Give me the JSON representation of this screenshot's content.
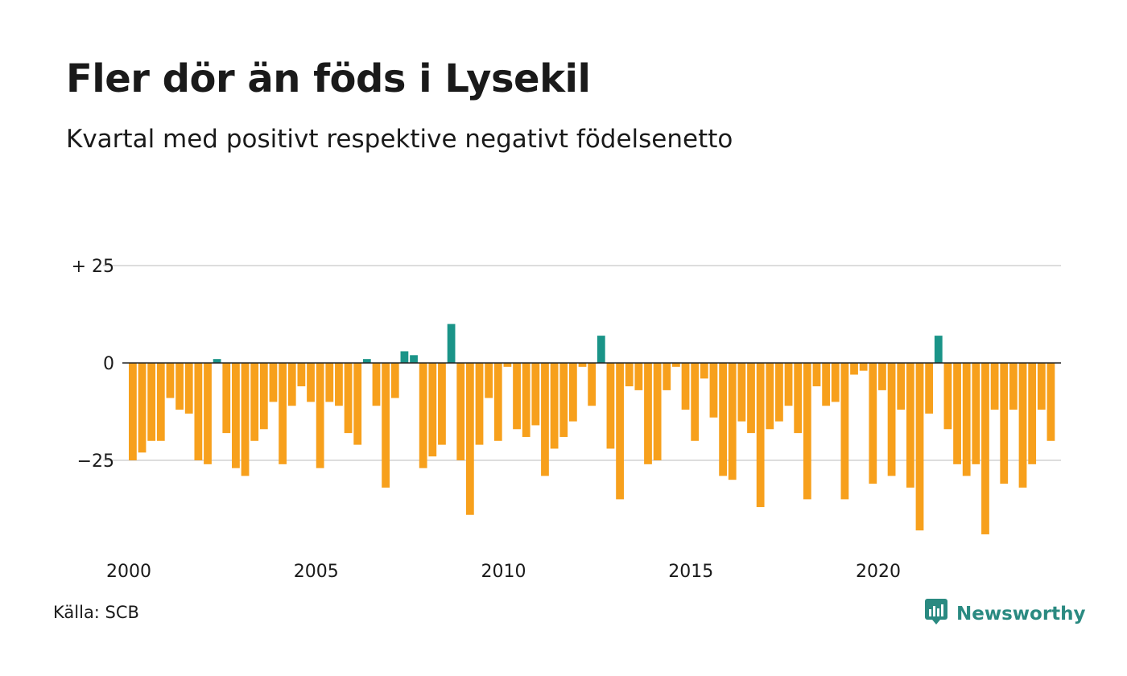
{
  "title": "Fler dör än föds i Lysekil",
  "subtitle": "Kvartal med positivt respektive negativt födelsenetto",
  "source": "Källa: SCB",
  "brand": {
    "name": "Newsworthy",
    "icon": "newsworthy-logo-icon",
    "color": "#2a8a81"
  },
  "colors": {
    "positive": "#1a9488",
    "negative": "#f7a01c",
    "grid": "#dddddd",
    "zero_line": "#222222"
  },
  "chart_data": {
    "type": "bar",
    "x_start": "2000 Q1",
    "frequency": "quarterly",
    "ylim": [
      -48,
      26
    ],
    "y_ticks": [
      {
        "value": 25,
        "label": "+ 25"
      },
      {
        "value": 0,
        "label": "0"
      },
      {
        "value": -25,
        "label": "−25"
      }
    ],
    "x_ticks": [
      {
        "year": 2000,
        "label": "2000"
      },
      {
        "year": 2005,
        "label": "2005"
      },
      {
        "year": 2010,
        "label": "2010"
      },
      {
        "year": 2015,
        "label": "2015"
      },
      {
        "year": 2020,
        "label": "2020"
      }
    ],
    "grid": true,
    "legend": "none",
    "values": [
      -25,
      -23,
      -20,
      -20,
      -9,
      -12,
      -13,
      -25,
      -26,
      1,
      -18,
      -27,
      -29,
      -20,
      -17,
      -10,
      -26,
      -11,
      -6,
      -10,
      -27,
      -10,
      -11,
      -18,
      -21,
      1,
      -11,
      -32,
      -9,
      3,
      2,
      -27,
      -24,
      -21,
      10,
      -25,
      -39,
      -21,
      -9,
      -20,
      -1,
      -17,
      -19,
      -16,
      -29,
      -22,
      -19,
      -15,
      -1,
      -11,
      7,
      -22,
      -35,
      -6,
      -7,
      -26,
      -25,
      -7,
      -1,
      -12,
      -20,
      -4,
      -14,
      -29,
      -30,
      -15,
      -18,
      -37,
      -17,
      -15,
      -11,
      -18,
      -35,
      -6,
      -11,
      -10,
      -35,
      -3,
      -2,
      -31,
      -7,
      -29,
      -12,
      -32,
      -43,
      -13,
      7,
      -17,
      -26,
      -29,
      -26,
      -44,
      -12,
      -31,
      -12,
      -32,
      -26,
      -12,
      -20
    ]
  }
}
